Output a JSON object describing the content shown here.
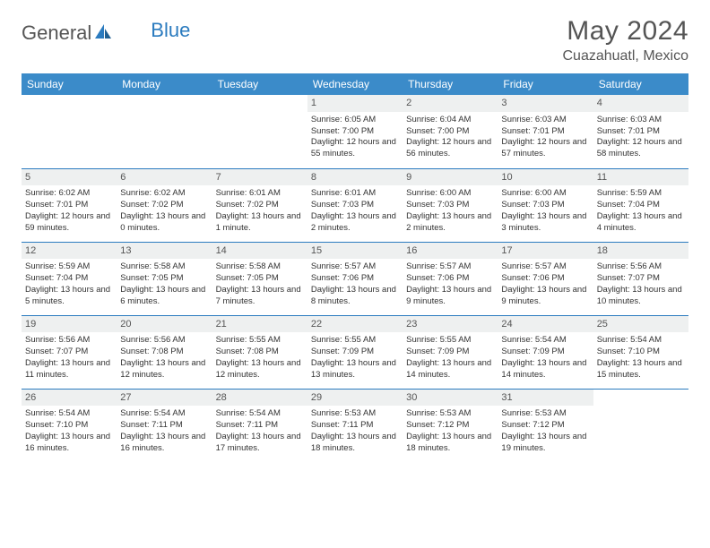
{
  "brand": {
    "part1": "General",
    "part2": "Blue"
  },
  "title": "May 2024",
  "location": "Cuazahuatl, Mexico",
  "colors": {
    "header_bg": "#3b8bc9",
    "header_text": "#ffffff",
    "row_divider": "#2b7bbf",
    "daynum_bg": "#eef0f0",
    "text_gray": "#555555",
    "logo_blue": "#2b7bbf"
  },
  "fonts": {
    "title_size": 30,
    "location_size": 16,
    "weekday_size": 12,
    "cell_size": 9.5
  },
  "weekdays": [
    "Sunday",
    "Monday",
    "Tuesday",
    "Wednesday",
    "Thursday",
    "Friday",
    "Saturday"
  ],
  "weeks": [
    [
      {
        "n": "",
        "sr": "",
        "ss": "",
        "dl": ""
      },
      {
        "n": "",
        "sr": "",
        "ss": "",
        "dl": ""
      },
      {
        "n": "",
        "sr": "",
        "ss": "",
        "dl": ""
      },
      {
        "n": "1",
        "sr": "Sunrise: 6:05 AM",
        "ss": "Sunset: 7:00 PM",
        "dl": "Daylight: 12 hours and 55 minutes."
      },
      {
        "n": "2",
        "sr": "Sunrise: 6:04 AM",
        "ss": "Sunset: 7:00 PM",
        "dl": "Daylight: 12 hours and 56 minutes."
      },
      {
        "n": "3",
        "sr": "Sunrise: 6:03 AM",
        "ss": "Sunset: 7:01 PM",
        "dl": "Daylight: 12 hours and 57 minutes."
      },
      {
        "n": "4",
        "sr": "Sunrise: 6:03 AM",
        "ss": "Sunset: 7:01 PM",
        "dl": "Daylight: 12 hours and 58 minutes."
      }
    ],
    [
      {
        "n": "5",
        "sr": "Sunrise: 6:02 AM",
        "ss": "Sunset: 7:01 PM",
        "dl": "Daylight: 12 hours and 59 minutes."
      },
      {
        "n": "6",
        "sr": "Sunrise: 6:02 AM",
        "ss": "Sunset: 7:02 PM",
        "dl": "Daylight: 13 hours and 0 minutes."
      },
      {
        "n": "7",
        "sr": "Sunrise: 6:01 AM",
        "ss": "Sunset: 7:02 PM",
        "dl": "Daylight: 13 hours and 1 minute."
      },
      {
        "n": "8",
        "sr": "Sunrise: 6:01 AM",
        "ss": "Sunset: 7:03 PM",
        "dl": "Daylight: 13 hours and 2 minutes."
      },
      {
        "n": "9",
        "sr": "Sunrise: 6:00 AM",
        "ss": "Sunset: 7:03 PM",
        "dl": "Daylight: 13 hours and 2 minutes."
      },
      {
        "n": "10",
        "sr": "Sunrise: 6:00 AM",
        "ss": "Sunset: 7:03 PM",
        "dl": "Daylight: 13 hours and 3 minutes."
      },
      {
        "n": "11",
        "sr": "Sunrise: 5:59 AM",
        "ss": "Sunset: 7:04 PM",
        "dl": "Daylight: 13 hours and 4 minutes."
      }
    ],
    [
      {
        "n": "12",
        "sr": "Sunrise: 5:59 AM",
        "ss": "Sunset: 7:04 PM",
        "dl": "Daylight: 13 hours and 5 minutes."
      },
      {
        "n": "13",
        "sr": "Sunrise: 5:58 AM",
        "ss": "Sunset: 7:05 PM",
        "dl": "Daylight: 13 hours and 6 minutes."
      },
      {
        "n": "14",
        "sr": "Sunrise: 5:58 AM",
        "ss": "Sunset: 7:05 PM",
        "dl": "Daylight: 13 hours and 7 minutes."
      },
      {
        "n": "15",
        "sr": "Sunrise: 5:57 AM",
        "ss": "Sunset: 7:06 PM",
        "dl": "Daylight: 13 hours and 8 minutes."
      },
      {
        "n": "16",
        "sr": "Sunrise: 5:57 AM",
        "ss": "Sunset: 7:06 PM",
        "dl": "Daylight: 13 hours and 9 minutes."
      },
      {
        "n": "17",
        "sr": "Sunrise: 5:57 AM",
        "ss": "Sunset: 7:06 PM",
        "dl": "Daylight: 13 hours and 9 minutes."
      },
      {
        "n": "18",
        "sr": "Sunrise: 5:56 AM",
        "ss": "Sunset: 7:07 PM",
        "dl": "Daylight: 13 hours and 10 minutes."
      }
    ],
    [
      {
        "n": "19",
        "sr": "Sunrise: 5:56 AM",
        "ss": "Sunset: 7:07 PM",
        "dl": "Daylight: 13 hours and 11 minutes."
      },
      {
        "n": "20",
        "sr": "Sunrise: 5:56 AM",
        "ss": "Sunset: 7:08 PM",
        "dl": "Daylight: 13 hours and 12 minutes."
      },
      {
        "n": "21",
        "sr": "Sunrise: 5:55 AM",
        "ss": "Sunset: 7:08 PM",
        "dl": "Daylight: 13 hours and 12 minutes."
      },
      {
        "n": "22",
        "sr": "Sunrise: 5:55 AM",
        "ss": "Sunset: 7:09 PM",
        "dl": "Daylight: 13 hours and 13 minutes."
      },
      {
        "n": "23",
        "sr": "Sunrise: 5:55 AM",
        "ss": "Sunset: 7:09 PM",
        "dl": "Daylight: 13 hours and 14 minutes."
      },
      {
        "n": "24",
        "sr": "Sunrise: 5:54 AM",
        "ss": "Sunset: 7:09 PM",
        "dl": "Daylight: 13 hours and 14 minutes."
      },
      {
        "n": "25",
        "sr": "Sunrise: 5:54 AM",
        "ss": "Sunset: 7:10 PM",
        "dl": "Daylight: 13 hours and 15 minutes."
      }
    ],
    [
      {
        "n": "26",
        "sr": "Sunrise: 5:54 AM",
        "ss": "Sunset: 7:10 PM",
        "dl": "Daylight: 13 hours and 16 minutes."
      },
      {
        "n": "27",
        "sr": "Sunrise: 5:54 AM",
        "ss": "Sunset: 7:11 PM",
        "dl": "Daylight: 13 hours and 16 minutes."
      },
      {
        "n": "28",
        "sr": "Sunrise: 5:54 AM",
        "ss": "Sunset: 7:11 PM",
        "dl": "Daylight: 13 hours and 17 minutes."
      },
      {
        "n": "29",
        "sr": "Sunrise: 5:53 AM",
        "ss": "Sunset: 7:11 PM",
        "dl": "Daylight: 13 hours and 18 minutes."
      },
      {
        "n": "30",
        "sr": "Sunrise: 5:53 AM",
        "ss": "Sunset: 7:12 PM",
        "dl": "Daylight: 13 hours and 18 minutes."
      },
      {
        "n": "31",
        "sr": "Sunrise: 5:53 AM",
        "ss": "Sunset: 7:12 PM",
        "dl": "Daylight: 13 hours and 19 minutes."
      },
      {
        "n": "",
        "sr": "",
        "ss": "",
        "dl": ""
      }
    ]
  ]
}
